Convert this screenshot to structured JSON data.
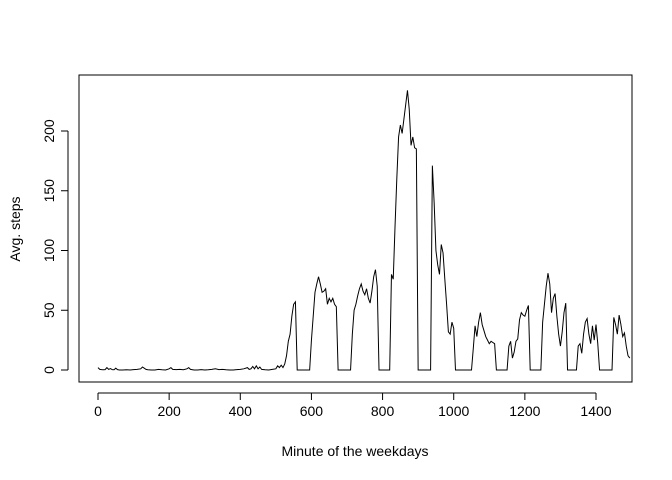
{
  "chart_data": {
    "type": "line",
    "title": "",
    "xlabel": "Minute of the weekdays",
    "ylabel": "Avg. steps",
    "xlim": [
      -40,
      1480
    ],
    "ylim": [
      -10,
      244
    ],
    "x_ticks": [
      0,
      200,
      400,
      600,
      800,
      1000,
      1200,
      1400
    ],
    "y_ticks": [
      0,
      50,
      100,
      150,
      200
    ],
    "grid": false,
    "legend": "none",
    "line_color": "#000000",
    "series": [
      {
        "values": [
          [
            0,
            2
          ],
          [
            5,
            0.5
          ],
          [
            10,
            0.3
          ],
          [
            15,
            0.2
          ],
          [
            20,
            0.3
          ],
          [
            25,
            2
          ],
          [
            30,
            0.5
          ],
          [
            35,
            1.2
          ],
          [
            40,
            0.3
          ],
          [
            45,
            0.2
          ],
          [
            50,
            1.5
          ],
          [
            55,
            0.3
          ],
          [
            60,
            0
          ],
          [
            70,
            0
          ],
          [
            80,
            0.2
          ],
          [
            90,
            0
          ],
          [
            100,
            0.3
          ],
          [
            110,
            0.5
          ],
          [
            120,
            1
          ],
          [
            125,
            2.5
          ],
          [
            130,
            1.5
          ],
          [
            135,
            0.5
          ],
          [
            140,
            0.2
          ],
          [
            150,
            0
          ],
          [
            160,
            0
          ],
          [
            170,
            0.5
          ],
          [
            180,
            0.2
          ],
          [
            190,
            0
          ],
          [
            200,
            1
          ],
          [
            205,
            2
          ],
          [
            210,
            0.5
          ],
          [
            220,
            0.3
          ],
          [
            230,
            0.5
          ],
          [
            240,
            0.2
          ],
          [
            250,
            1
          ],
          [
            255,
            2
          ],
          [
            260,
            0.5
          ],
          [
            270,
            0
          ],
          [
            280,
            0
          ],
          [
            290,
            0.3
          ],
          [
            300,
            0
          ],
          [
            310,
            0.2
          ],
          [
            320,
            0.5
          ],
          [
            330,
            1
          ],
          [
            340,
            0.3
          ],
          [
            350,
            0.5
          ],
          [
            360,
            0.2
          ],
          [
            370,
            0
          ],
          [
            380,
            0
          ],
          [
            390,
            0.3
          ],
          [
            400,
            0.5
          ],
          [
            410,
            1
          ],
          [
            420,
            2
          ],
          [
            425,
            0.5
          ],
          [
            430,
            1
          ],
          [
            435,
            3
          ],
          [
            440,
            1
          ],
          [
            445,
            3.5
          ],
          [
            450,
            1
          ],
          [
            455,
            2.5
          ],
          [
            460,
            0.5
          ],
          [
            470,
            0.2
          ],
          [
            480,
            0
          ],
          [
            490,
            0.5
          ],
          [
            500,
            1
          ],
          [
            505,
            3.5
          ],
          [
            510,
            2
          ],
          [
            515,
            4
          ],
          [
            520,
            2
          ],
          [
            525,
            5
          ],
          [
            530,
            12
          ],
          [
            535,
            24
          ],
          [
            540,
            30
          ],
          [
            545,
            45
          ],
          [
            550,
            55
          ],
          [
            555,
            57
          ],
          [
            560,
            0
          ],
          [
            595,
            0
          ],
          [
            600,
            25
          ],
          [
            605,
            45
          ],
          [
            610,
            65
          ],
          [
            615,
            72
          ],
          [
            620,
            78
          ],
          [
            625,
            72
          ],
          [
            630,
            65
          ],
          [
            635,
            66
          ],
          [
            640,
            68
          ],
          [
            645,
            55
          ],
          [
            650,
            60
          ],
          [
            655,
            57
          ],
          [
            660,
            60
          ],
          [
            665,
            55
          ],
          [
            670,
            53
          ],
          [
            675,
            0
          ],
          [
            710,
            0
          ],
          [
            715,
            30
          ],
          [
            720,
            50
          ],
          [
            725,
            55
          ],
          [
            730,
            62
          ],
          [
            735,
            68
          ],
          [
            740,
            72
          ],
          [
            745,
            66
          ],
          [
            750,
            63
          ],
          [
            755,
            68
          ],
          [
            760,
            60
          ],
          [
            765,
            56
          ],
          [
            770,
            66
          ],
          [
            775,
            78
          ],
          [
            780,
            84
          ],
          [
            785,
            70
          ],
          [
            790,
            0
          ],
          [
            820,
            0
          ],
          [
            825,
            80
          ],
          [
            830,
            76
          ],
          [
            835,
            120
          ],
          [
            840,
            160
          ],
          [
            845,
            195
          ],
          [
            850,
            205
          ],
          [
            855,
            198
          ],
          [
            860,
            210
          ],
          [
            865,
            222
          ],
          [
            870,
            234
          ],
          [
            875,
            218
          ],
          [
            880,
            188
          ],
          [
            885,
            195
          ],
          [
            890,
            186
          ],
          [
            895,
            185
          ],
          [
            900,
            0
          ],
          [
            935,
            0
          ],
          [
            940,
            171
          ],
          [
            945,
            140
          ],
          [
            950,
            100
          ],
          [
            955,
            88
          ],
          [
            960,
            80
          ],
          [
            965,
            105
          ],
          [
            970,
            98
          ],
          [
            975,
            76
          ],
          [
            980,
            55
          ],
          [
            985,
            32
          ],
          [
            990,
            30
          ],
          [
            995,
            40
          ],
          [
            1000,
            35
          ],
          [
            1005,
            0
          ],
          [
            1050,
            0
          ],
          [
            1055,
            18
          ],
          [
            1060,
            37
          ],
          [
            1065,
            28
          ],
          [
            1070,
            40
          ],
          [
            1075,
            48
          ],
          [
            1080,
            38
          ],
          [
            1085,
            33
          ],
          [
            1090,
            28
          ],
          [
            1095,
            25
          ],
          [
            1100,
            22
          ],
          [
            1105,
            24
          ],
          [
            1110,
            23
          ],
          [
            1115,
            22
          ],
          [
            1120,
            0
          ],
          [
            1150,
            0
          ],
          [
            1155,
            20
          ],
          [
            1160,
            24
          ],
          [
            1165,
            10
          ],
          [
            1170,
            15
          ],
          [
            1175,
            24
          ],
          [
            1180,
            26
          ],
          [
            1185,
            42
          ],
          [
            1190,
            48
          ],
          [
            1195,
            46
          ],
          [
            1200,
            45
          ],
          [
            1205,
            50
          ],
          [
            1210,
            54
          ],
          [
            1215,
            0
          ],
          [
            1245,
            0
          ],
          [
            1250,
            40
          ],
          [
            1255,
            55
          ],
          [
            1260,
            70
          ],
          [
            1265,
            81
          ],
          [
            1270,
            72
          ],
          [
            1275,
            48
          ],
          [
            1280,
            60
          ],
          [
            1285,
            64
          ],
          [
            1290,
            45
          ],
          [
            1295,
            30
          ],
          [
            1300,
            20
          ],
          [
            1305,
            32
          ],
          [
            1310,
            48
          ],
          [
            1315,
            56
          ],
          [
            1320,
            0
          ],
          [
            1345,
            0
          ],
          [
            1350,
            20
          ],
          [
            1355,
            22
          ],
          [
            1360,
            14
          ],
          [
            1365,
            30
          ],
          [
            1370,
            40
          ],
          [
            1375,
            43
          ],
          [
            1380,
            30
          ],
          [
            1385,
            22
          ],
          [
            1390,
            37
          ],
          [
            1395,
            25
          ],
          [
            1400,
            38
          ],
          [
            1405,
            22
          ],
          [
            1410,
            0
          ],
          [
            1445,
            0
          ],
          [
            1450,
            44
          ],
          [
            1455,
            38
          ],
          [
            1460,
            30
          ],
          [
            1465,
            46
          ],
          [
            1470,
            38
          ],
          [
            1475,
            28
          ],
          [
            1480,
            31
          ],
          [
            1485,
            20
          ],
          [
            1490,
            12
          ],
          [
            1495,
            10
          ]
        ]
      }
    ]
  }
}
